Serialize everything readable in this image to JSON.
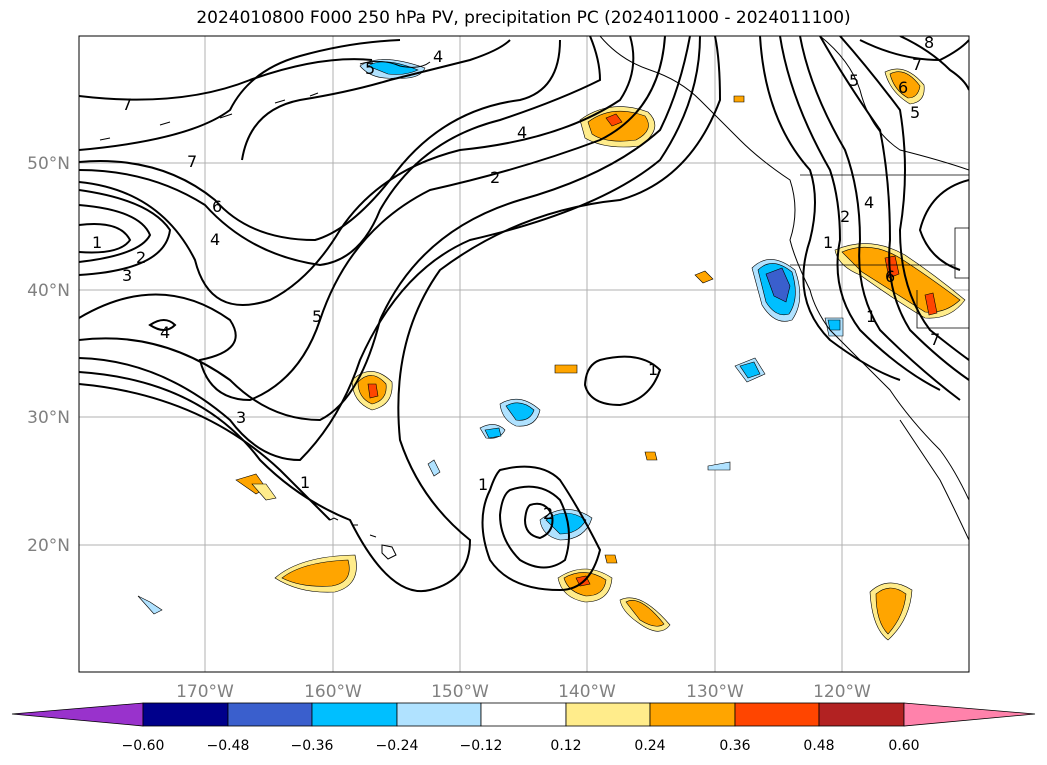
{
  "title": "2024010800 F000 250 hPa PV, precipitation PC (2024011000 - 2024011100)",
  "map": {
    "region": "North Pacific and western North America",
    "gridlines": true,
    "lat_labels": [
      "50°N",
      "40°N",
      "30°N",
      "20°N"
    ],
    "lon_labels": [
      "170°W",
      "160°W",
      "150°W",
      "140°W",
      "130°W",
      "120°W"
    ],
    "contour_labels": [
      "7",
      "7",
      "6",
      "4",
      "1",
      "2",
      "3",
      "4",
      "5",
      "3",
      "1",
      "5",
      "4",
      "2",
      "4",
      "1",
      "2",
      "1",
      "1",
      "8",
      "7",
      "6",
      "5",
      "5",
      "4",
      "2",
      "1",
      "6",
      "7"
    ],
    "colors": {
      "gridline": "#b0b0b0",
      "axis_label": "#808080",
      "contour": "#000000"
    }
  },
  "colorbar": {
    "ticks": [
      "−0.60",
      "−0.48",
      "−0.36",
      "−0.24",
      "−0.12",
      "0.12",
      "0.24",
      "0.36",
      "0.48",
      "0.60"
    ],
    "colors": [
      "#9932cc",
      "#00008b",
      "#3a5fcd",
      "#00bfff",
      "#b0e2ff",
      "#ffffff",
      "#ffec8b",
      "#ffa500",
      "#ff4500",
      "#b22222",
      "#ff82ab"
    ]
  }
}
